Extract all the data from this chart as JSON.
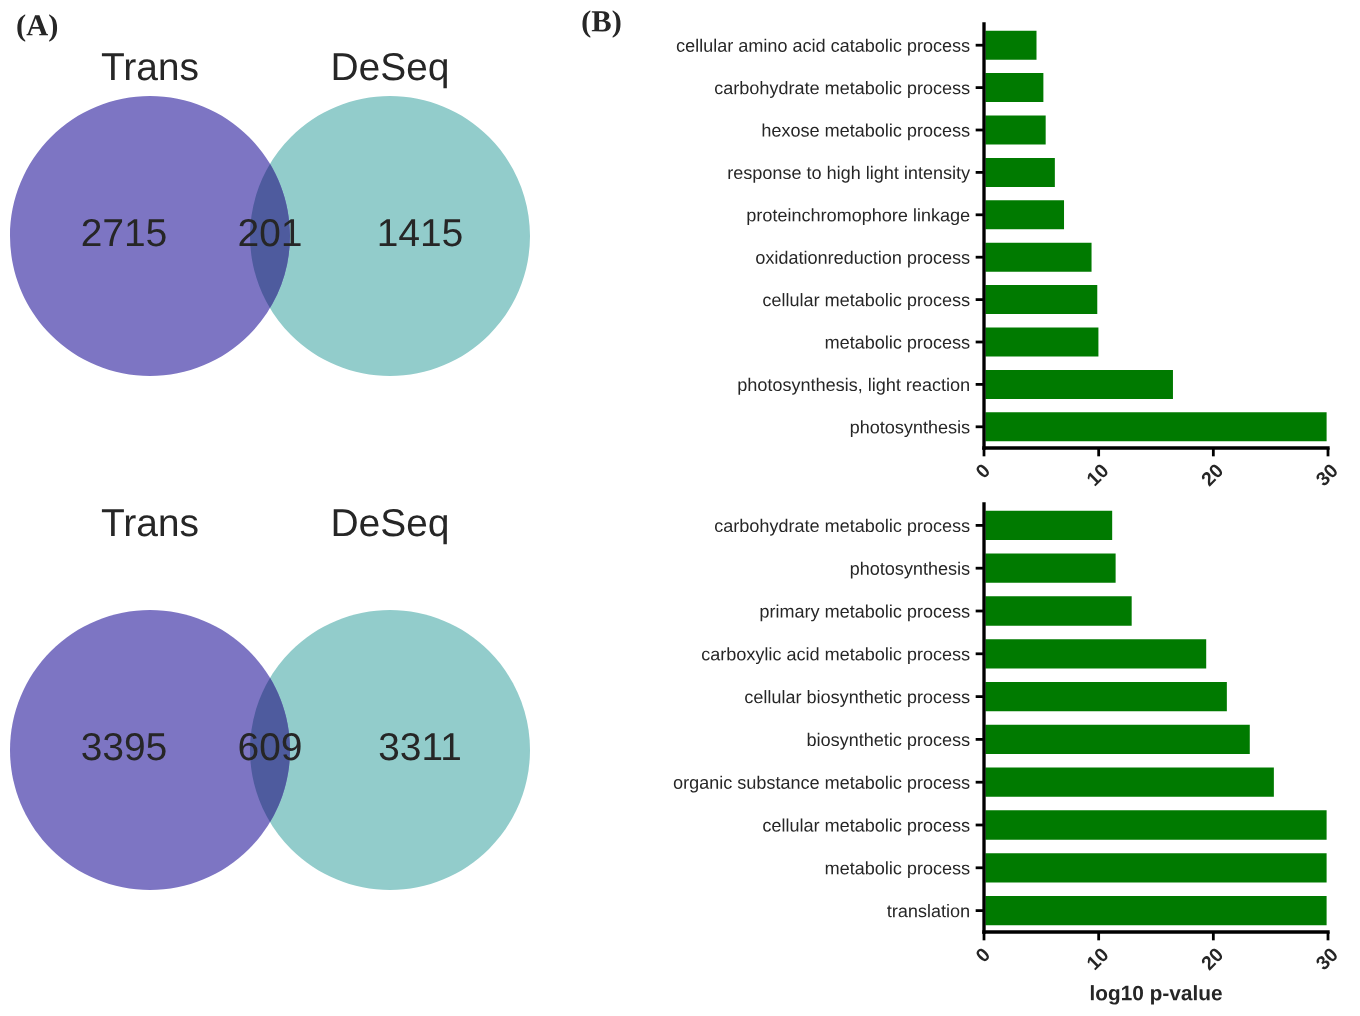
{
  "chart_data": [
    {
      "type": "other",
      "title": "(A)",
      "categories": [
        "Trans",
        null,
        "DeSeq"
      ],
      "values": [
        2715,
        201,
        1415
      ],
      "data_labels": true,
      "colors": [
        "#7d75c3",
        "#4e5b9e",
        "#92cccb"
      ]
    },
    {
      "type": "bar",
      "orientation": "horizontal",
      "title": "(B)",
      "categories": [
        "cellular amino acid catabolic process",
        "carbohydrate metabolic process",
        "hexose metabolic process",
        "response to high light intensity",
        "proteinchromophore linkage",
        "oxidationreduction process",
        "cellular metabolic process",
        "metabolic process",
        "photosynthesis, light reaction",
        "photosynthesis"
      ],
      "values": [
        4.7,
        5.3,
        5.5,
        6.3,
        7.1,
        9.5,
        10.0,
        10.1,
        16.6,
        30
      ],
      "color": "#007a00",
      "xlim": [
        0,
        30
      ],
      "xticks": [
        0,
        10,
        20,
        30
      ],
      "grid": false,
      "legend": false
    },
    {
      "type": "other",
      "categories": [
        "Trans",
        null,
        "DeSeq"
      ],
      "values": [
        3395,
        609,
        3311
      ],
      "data_labels": true,
      "colors": [
        "#7d75c3",
        "#4e5b9e",
        "#92cccb"
      ]
    },
    {
      "type": "bar",
      "orientation": "horizontal",
      "xlabel": "log10 p-value",
      "categories": [
        "carbohydrate metabolic process",
        "photosynthesis",
        "primary metabolic process",
        "carboxylic acid metabolic process",
        "cellular biosynthetic process",
        "biosynthetic process",
        "organic substance metabolic process",
        "cellular metabolic process",
        "metabolic process",
        "translation"
      ],
      "values": [
        11.3,
        11.6,
        13.0,
        19.5,
        21.3,
        23.3,
        25.4,
        30,
        30,
        30
      ],
      "color": "#007a00",
      "xlim": [
        0,
        30
      ],
      "xticks": [
        0,
        10,
        20,
        30
      ],
      "grid": false,
      "legend": false
    }
  ]
}
